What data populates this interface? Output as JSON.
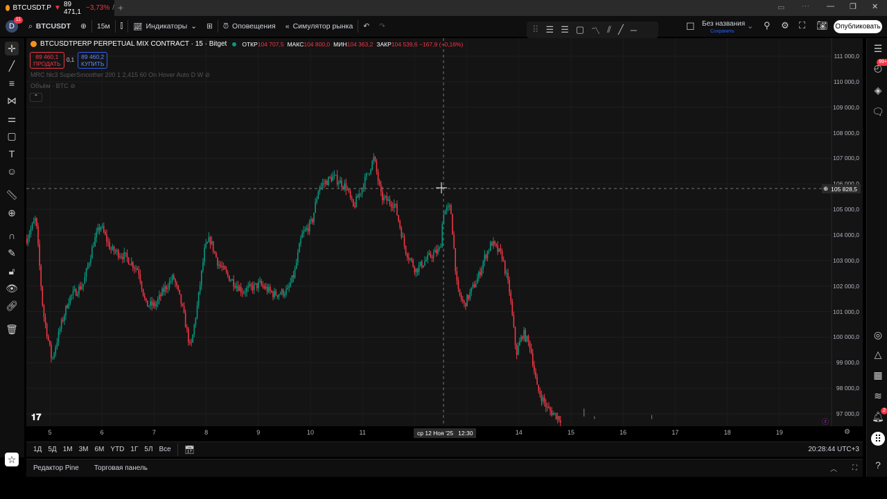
{
  "tab": {
    "symbol": "BTCUSDT.P",
    "price": "89 471,1",
    "change": "−3,73%",
    "sep": "/",
    "new_tab": "+"
  },
  "toolbar": {
    "avatar": "D",
    "avatar_badge": "11",
    "symbol": "BTCUSDT",
    "interval": "15м",
    "indicators": "Индикаторы",
    "alerts": "Оповещения",
    "replay": "Симулятор рынка",
    "layout_name": "Без названия",
    "layout_sub": "Сохранить",
    "publish": "Опубликовать"
  },
  "legend": {
    "title": "BTCUSDTPERP PERPETUAL MIX CONTRACT · 15 · Bitget",
    "o_label": "ОТКР",
    "o": "104 707,5",
    "h_label": "МАКС",
    "h": "104 800,0",
    "l_label": "МИН",
    "l": "104 363,2",
    "c_label": "ЗАКР",
    "c": "104 539,6",
    "chg": "−167,9 (−0,16%)",
    "sell_price": "89 460,1",
    "sell": "ПРОДАТЬ",
    "spread": "0,1",
    "buy_price": "89 460,2",
    "buy": "КУПИТЬ",
    "indicator1": "MRC hlc3 SuperSmoother 200 1 2,415 60 On Hover Auto D W",
    "indicator2": "Объём · BTC"
  },
  "price_axis": [
    "111 000,0",
    "110 000,0",
    "109 000,0",
    "108 000,0",
    "107 000,0",
    "106 000,0",
    "105 000,0",
    "104 000,0",
    "103 000,0",
    "102 000,0",
    "101 000,0",
    "100 000,0",
    "99 000,0",
    "98 000,0",
    "97 000,0"
  ],
  "crosshair": {
    "price": "105 828,5",
    "time": "ср 12 Ноя '25   12:30"
  },
  "time_axis": [
    "5",
    "6",
    "7",
    "8",
    "9",
    "10",
    "11",
    "14",
    "15",
    "16",
    "17",
    "18",
    "19"
  ],
  "ranges": [
    "1Д",
    "5Д",
    "1М",
    "3М",
    "6М",
    "YTD",
    "1Г",
    "5Л",
    "Все"
  ],
  "clock": "20:28:44 UTC+3",
  "bottom": {
    "pine": "Редактор Pine",
    "trading": "Торговая панель"
  },
  "right_badges": {
    "ideas": "99+",
    "alerts": "2"
  },
  "colors": {
    "up": "#089981",
    "down": "#f23645",
    "bg": "#141414",
    "accent": "#2962ff"
  },
  "chart_data": {
    "type": "candlestick",
    "x_unit": "day of November 2025",
    "ylim": [
      96700,
      111300
    ],
    "path": [
      [
        4.55,
        103840
      ],
      [
        4.73,
        104650
      ],
      [
        4.87,
        100990
      ],
      [
        5.04,
        99090
      ],
      [
        5.21,
        100450
      ],
      [
        5.37,
        101530
      ],
      [
        5.64,
        102070
      ],
      [
        5.84,
        103700
      ],
      [
        5.97,
        104380
      ],
      [
        6.17,
        103430
      ],
      [
        6.44,
        103160
      ],
      [
        6.7,
        102620
      ],
      [
        6.84,
        101260
      ],
      [
        7.03,
        101260
      ],
      [
        7.17,
        101800
      ],
      [
        7.37,
        102350
      ],
      [
        7.53,
        101260
      ],
      [
        7.7,
        99500
      ],
      [
        7.83,
        101260
      ],
      [
        7.97,
        103430
      ],
      [
        8.07,
        103840
      ],
      [
        8.23,
        102890
      ],
      [
        8.43,
        102350
      ],
      [
        8.7,
        101800
      ],
      [
        9.03,
        102070
      ],
      [
        9.3,
        101670
      ],
      [
        9.56,
        101800
      ],
      [
        9.69,
        102480
      ],
      [
        9.83,
        103970
      ],
      [
        10.03,
        104520
      ],
      [
        10.16,
        105870
      ],
      [
        10.43,
        106280
      ],
      [
        10.69,
        105870
      ],
      [
        10.82,
        105060
      ],
      [
        11.02,
        106010
      ],
      [
        11.22,
        107010
      ],
      [
        11.36,
        105470
      ],
      [
        11.62,
        105190
      ],
      [
        11.82,
        103430
      ],
      [
        12.02,
        102620
      ],
      [
        12.29,
        103160
      ],
      [
        12.49,
        103430
      ],
      [
        12.55,
        104920
      ],
      [
        12.69,
        105060
      ],
      [
        12.82,
        101800
      ],
      [
        12.95,
        101260
      ],
      [
        13.22,
        102350
      ],
      [
        13.35,
        103160
      ],
      [
        13.48,
        103700
      ],
      [
        13.68,
        103160
      ],
      [
        13.82,
        101800
      ],
      [
        13.95,
        99360
      ],
      [
        14.08,
        100180
      ],
      [
        14.22,
        99630
      ],
      [
        14.35,
        98000
      ],
      [
        14.55,
        97190
      ],
      [
        14.81,
        96780
      ]
    ]
  }
}
